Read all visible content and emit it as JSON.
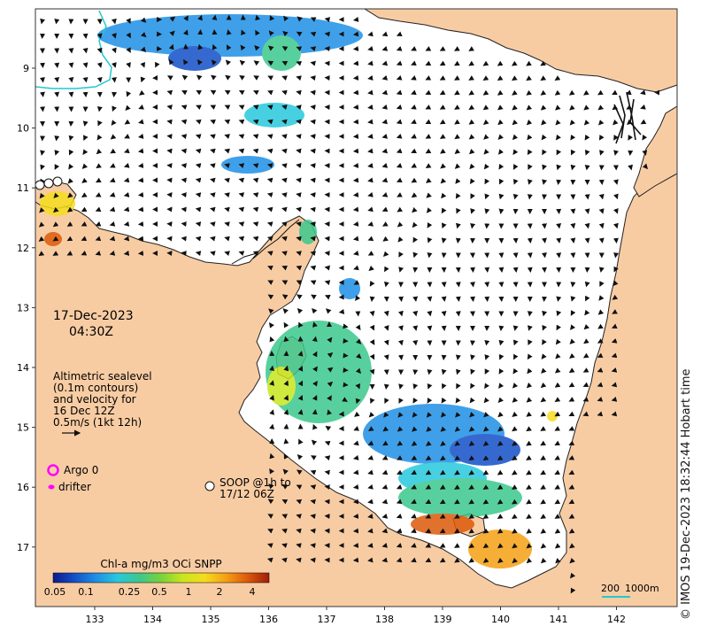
{
  "map": {
    "lat_ticks": [
      "9",
      "10",
      "11",
      "12",
      "13",
      "14",
      "15",
      "16",
      "17"
    ],
    "lon_ticks": [
      "133",
      "134",
      "135",
      "136",
      "137",
      "138",
      "139",
      "140",
      "141",
      "142"
    ],
    "colors": {
      "land": "#f8cca3",
      "sea": "#ffffff",
      "coast": "#222222",
      "arrow": "#111111",
      "cable": "#22c8d0"
    }
  },
  "date_label": "17-Dec-2023",
  "time_label": "04:30Z",
  "altimetry_note": {
    "line1": "Altimetric sealevel",
    "line2": "(0.1m contours)",
    "line3": "and velocity for",
    "line4": "16 Dec 12Z",
    "line5": "0.5m/s (1kt 12h)"
  },
  "legend": {
    "argo": "Argo 0",
    "drifter": "drifter",
    "soop_line1": "SOOP @1h to",
    "soop_line2": "17/12 06Z"
  },
  "colorbar": {
    "title": "Chl-a mg/m3 OCi SNPP",
    "ticks": [
      "0.05",
      "0.1",
      "0.25",
      "0.5",
      "1",
      "2",
      "4"
    ],
    "stops": [
      "#0d1a8c",
      "#1450c8",
      "#1e90e6",
      "#28c8dc",
      "#3cc88c",
      "#78d23c",
      "#c8e61e",
      "#f5dc1e",
      "#f5a014",
      "#dc5a0a",
      "#a01e0a"
    ]
  },
  "scale_bar": {
    "label_200": "200",
    "label_1000": "1000m"
  },
  "copyright": "© IMOS 19-Dec-2023 18:32:44 Hobart time"
}
